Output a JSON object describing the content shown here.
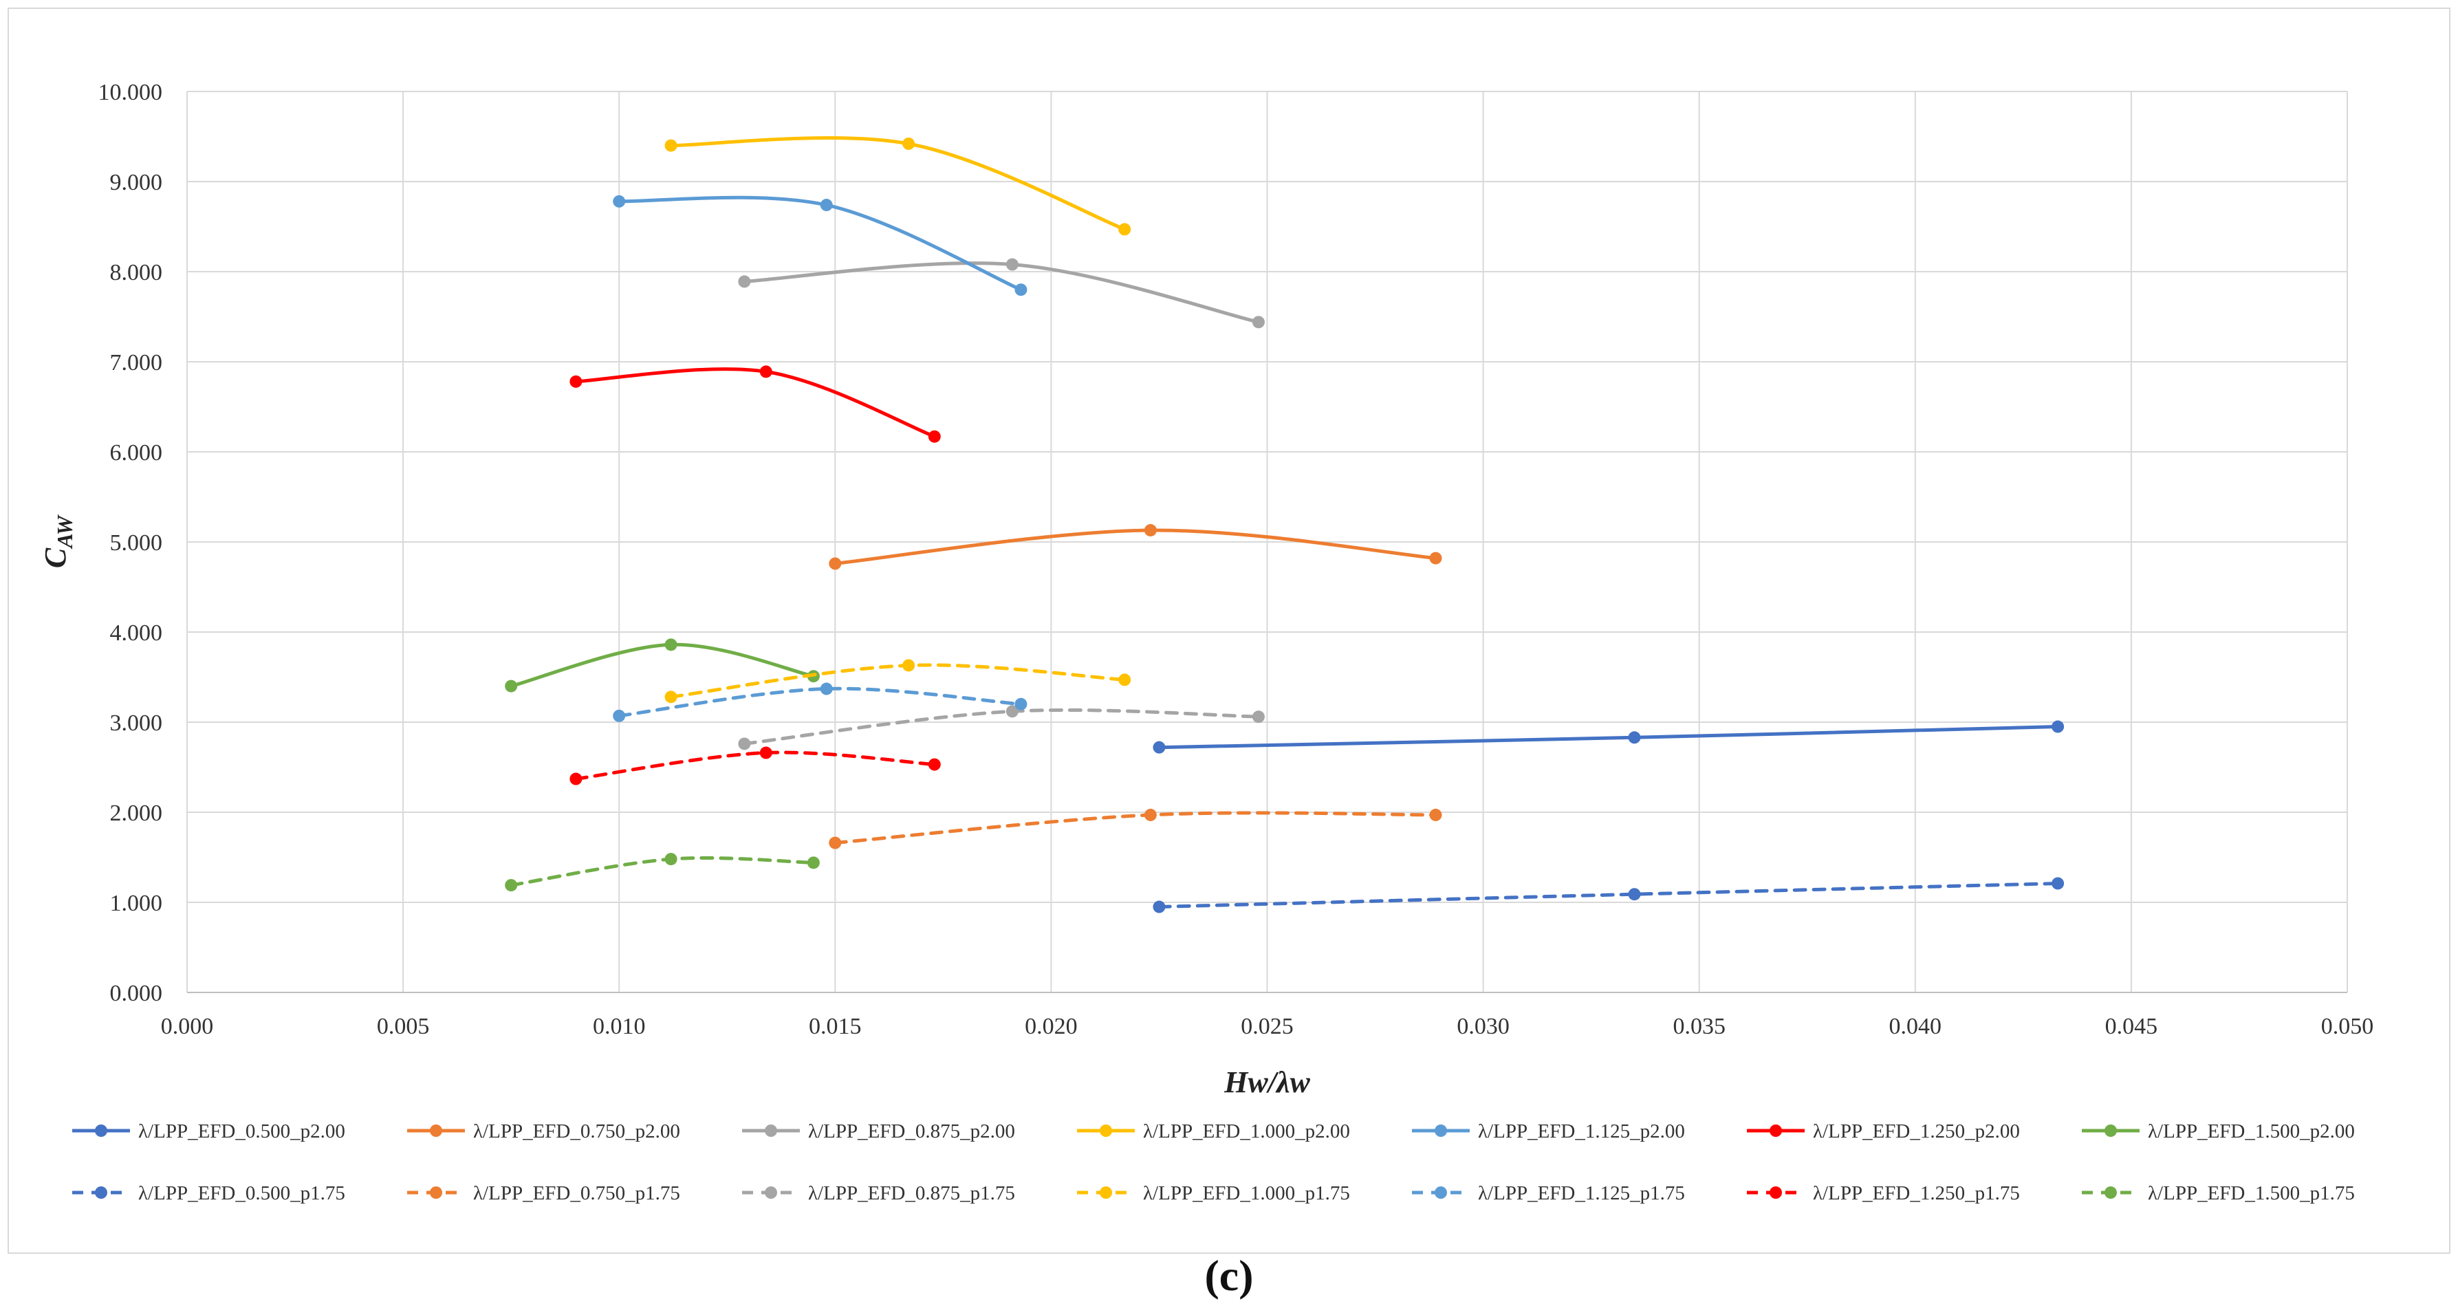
{
  "chart_data": {
    "type": "line",
    "title": "",
    "xlabel": "Hw/λw",
    "ylabel_main": "C",
    "ylabel_sub": "AW",
    "caption": "(c)",
    "xlim": [
      0.0,
      0.05
    ],
    "ylim": [
      0.0,
      10.0
    ],
    "x_ticks": [
      "0.000",
      "0.005",
      "0.010",
      "0.015",
      "0.020",
      "0.025",
      "0.030",
      "0.035",
      "0.040",
      "0.045",
      "0.050"
    ],
    "y_ticks": [
      "0.000",
      "1.000",
      "2.000",
      "3.000",
      "4.000",
      "5.000",
      "6.000",
      "7.000",
      "8.000",
      "9.000",
      "10.000"
    ],
    "x_tick_values": [
      0.0,
      0.005,
      0.01,
      0.015,
      0.02,
      0.025,
      0.03,
      0.035,
      0.04,
      0.045,
      0.05
    ],
    "y_tick_values": [
      0,
      1,
      2,
      3,
      4,
      5,
      6,
      7,
      8,
      9,
      10
    ],
    "grid": true,
    "legend_position": "bottom",
    "series": [
      {
        "name": "λ/LPP_EFD_0.500_p2.00",
        "color": "#4472C4",
        "dash": false,
        "x": [
          0.0225,
          0.0335,
          0.0433
        ],
        "y": [
          2.72,
          2.83,
          2.95
        ]
      },
      {
        "name": "λ/LPP_EFD_0.750_p2.00",
        "color": "#ED7D31",
        "dash": false,
        "x": [
          0.015,
          0.0223,
          0.0289
        ],
        "y": [
          4.76,
          5.13,
          4.82
        ]
      },
      {
        "name": "λ/LPP_EFD_0.875_p2.00",
        "color": "#A5A5A5",
        "dash": false,
        "x": [
          0.0129,
          0.0191,
          0.0248
        ],
        "y": [
          7.89,
          8.08,
          7.44
        ]
      },
      {
        "name": "λ/LPP_EFD_1.000_p2.00",
        "color": "#FFC000",
        "dash": false,
        "x": [
          0.0112,
          0.0167,
          0.0217
        ],
        "y": [
          9.4,
          9.42,
          8.47
        ]
      },
      {
        "name": "λ/LPP_EFD_1.125_p2.00",
        "color": "#5B9BD5",
        "dash": false,
        "x": [
          0.01,
          0.0148,
          0.0193
        ],
        "y": [
          8.78,
          8.74,
          7.8
        ]
      },
      {
        "name": "λ/LPP_EFD_1.250_p2.00",
        "color": "#FF0000",
        "dash": false,
        "x": [
          0.009,
          0.0134,
          0.0173
        ],
        "y": [
          6.78,
          6.89,
          6.17
        ]
      },
      {
        "name": "λ/LPP_EFD_1.500_p2.00",
        "color": "#70AD47",
        "dash": false,
        "x": [
          0.0075,
          0.0112,
          0.0145
        ],
        "y": [
          3.4,
          3.86,
          3.51
        ]
      },
      {
        "name": "λ/LPP_EFD_0.500_p1.75",
        "color": "#4472C4",
        "dash": true,
        "x": [
          0.0225,
          0.0335,
          0.0433
        ],
        "y": [
          0.95,
          1.09,
          1.21
        ]
      },
      {
        "name": "λ/LPP_EFD_0.750_p1.75",
        "color": "#ED7D31",
        "dash": true,
        "x": [
          0.015,
          0.0223,
          0.0289
        ],
        "y": [
          1.66,
          1.97,
          1.97
        ]
      },
      {
        "name": "λ/LPP_EFD_0.875_p1.75",
        "color": "#A5A5A5",
        "dash": true,
        "x": [
          0.0129,
          0.0191,
          0.0248
        ],
        "y": [
          2.76,
          3.12,
          3.06
        ]
      },
      {
        "name": "λ/LPP_EFD_1.000_p1.75",
        "color": "#FFC000",
        "dash": true,
        "x": [
          0.0112,
          0.0167,
          0.0217
        ],
        "y": [
          3.28,
          3.63,
          3.47
        ]
      },
      {
        "name": "λ/LPP_EFD_1.125_p1.75",
        "color": "#5B9BD5",
        "dash": true,
        "x": [
          0.01,
          0.0148,
          0.0193
        ],
        "y": [
          3.07,
          3.37,
          3.2
        ]
      },
      {
        "name": "λ/LPP_EFD_1.250_p1.75",
        "color": "#FF0000",
        "dash": true,
        "x": [
          0.009,
          0.0134,
          0.0173
        ],
        "y": [
          2.37,
          2.66,
          2.53
        ]
      },
      {
        "name": "λ/LPP_EFD_1.500_p1.75",
        "color": "#70AD47",
        "dash": true,
        "x": [
          0.0075,
          0.0112,
          0.0145
        ],
        "y": [
          1.19,
          1.48,
          1.44
        ]
      }
    ]
  }
}
